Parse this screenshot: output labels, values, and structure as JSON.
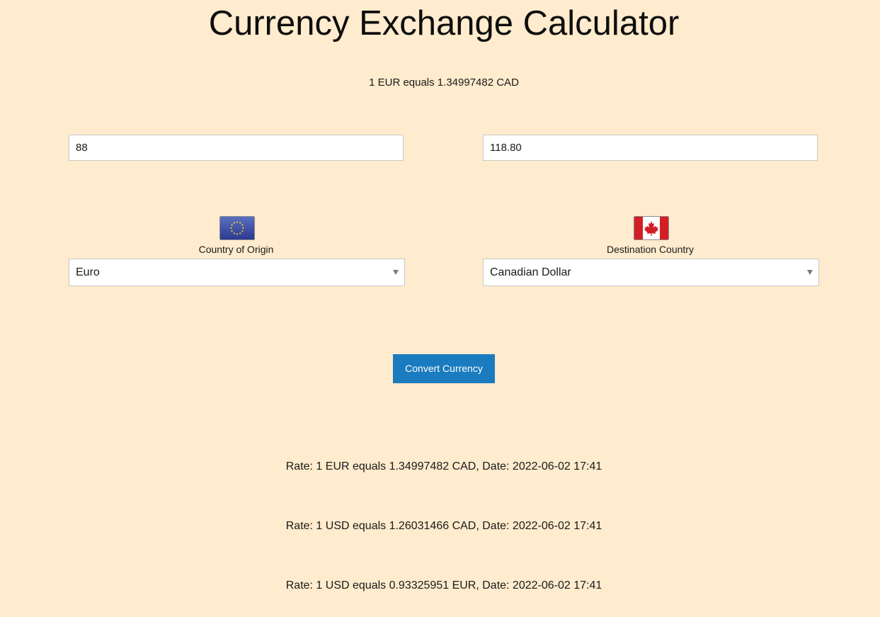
{
  "page": {
    "title": "Currency Exchange Calculator",
    "background_color": "#FFEBCD"
  },
  "rate_summary": "1 EUR equals 1.34997482 CAD",
  "amount": {
    "value": "88"
  },
  "result": {
    "value": "118.80"
  },
  "origin": {
    "label": "Country of Origin",
    "flag_icon": "eu-flag-icon",
    "selected": "Euro"
  },
  "destination": {
    "label": "Destination Country",
    "flag_icon": "canada-flag-icon",
    "selected": "Canadian Dollar"
  },
  "convert_button": {
    "label": "Convert Currency",
    "color": "#1A7BBF"
  },
  "history": [
    "Rate: 1 EUR equals 1.34997482 CAD, Date: 2022-06-02 17:41",
    "Rate: 1 USD equals 1.26031466 CAD, Date: 2022-06-02 17:41",
    "Rate: 1 USD equals 0.93325951 EUR, Date: 2022-06-02 17:41"
  ]
}
